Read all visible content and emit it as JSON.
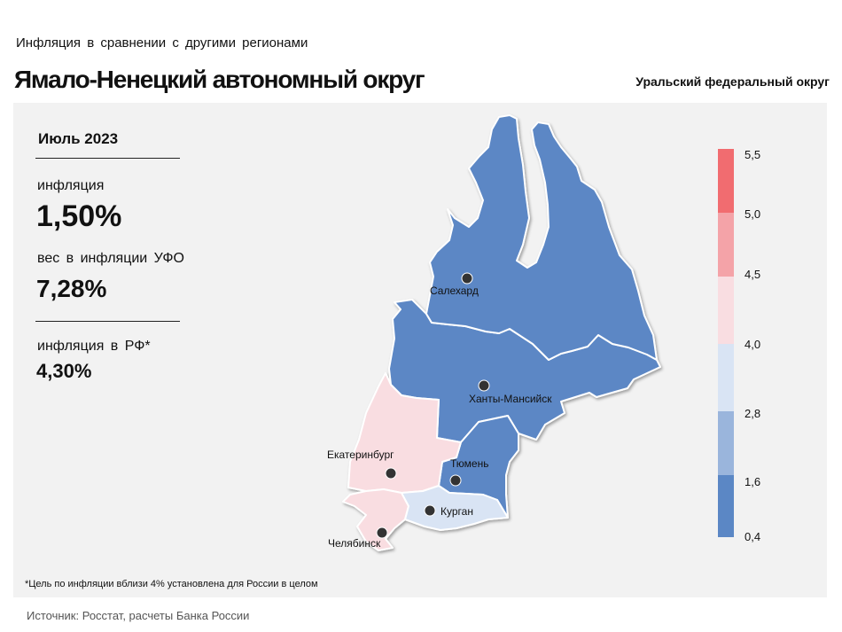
{
  "header": {
    "subtitle": "Инфляция  в сравнении  с другими  регионами",
    "title": "Ямало-Ненецкий автономный округ",
    "district": "Уральский федеральный округ"
  },
  "stats": {
    "period": "Июль 2023",
    "inflation_label": "инфляция",
    "inflation_value": "1,50%",
    "weight_label": "вес в инфляции  УФО",
    "weight_value": "7,28%",
    "rf_label": "инфляция  в РФ*",
    "rf_value": "4,30%"
  },
  "footnote": "*Цель по инфляции вблизи 4% установлена для России в целом",
  "source": "Источник: Росстат, расчеты Банка России",
  "colors": {
    "dark_blue": "#5b87c5",
    "mid_blue": "#9ab5dc",
    "light_blue": "#d9e4f4",
    "light_pink": "#f9dde1",
    "mid_pink": "#f4a3a8",
    "red": "#f16c70"
  },
  "legend": {
    "ticks": [
      "5,5",
      "5,0",
      "4,5",
      "4,0",
      "2,8",
      "1,6",
      "0,4"
    ],
    "segments": [
      {
        "from": 5.0,
        "to": 5.5,
        "color": "#f16c70"
      },
      {
        "from": 4.5,
        "to": 5.0,
        "color": "#f4a3a8"
      },
      {
        "from": 4.0,
        "to": 4.5,
        "color": "#f9dde1"
      },
      {
        "from": 2.8,
        "to": 4.0,
        "color": "#d9e4f4"
      },
      {
        "from": 1.6,
        "to": 2.8,
        "color": "#9ab5dc"
      },
      {
        "from": 0.4,
        "to": 1.6,
        "color": "#5b87c5"
      }
    ]
  },
  "cities": {
    "salekhard": "Салехард",
    "khanty": "Ханты-Мансийск",
    "ekb": "Екатеринбург",
    "tyumen": "Тюмень",
    "kurgan": "Курган",
    "chelyabinsk": "Челябинск"
  }
}
